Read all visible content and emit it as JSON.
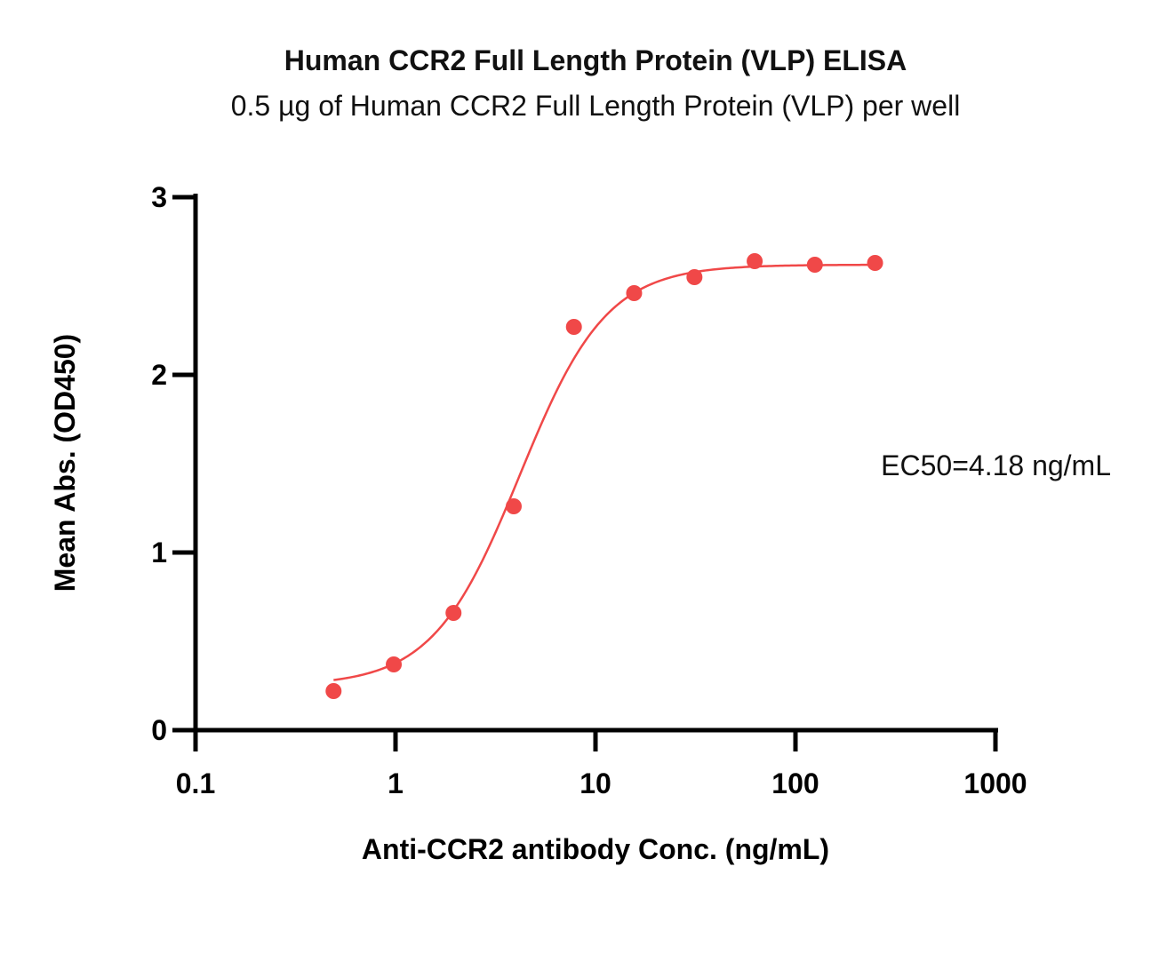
{
  "chart_data": {
    "type": "scatter",
    "title": "Human CCR2 Full Length Protein (VLP) ELISA",
    "subtitle": "0.5 µg of Human CCR2 Full Length Protein (VLP) per well",
    "xlabel": "Anti-CCR2 antibody Conc. (ng/mL)",
    "ylabel": "Mean Abs. (OD450)",
    "xscale": "log",
    "xlim": [
      0.1,
      1000
    ],
    "ylim": [
      0,
      3
    ],
    "xticks": [
      "0.1",
      "1",
      "10",
      "100",
      "1000"
    ],
    "yticks": [
      "0",
      "1",
      "2",
      "3"
    ],
    "annotation": "EC50=4.18 ng/mL",
    "color": "#f04848",
    "grid": false,
    "points": {
      "x": [
        0.49,
        0.98,
        1.95,
        3.9,
        7.8,
        15.6,
        31.25,
        62.5,
        125,
        250
      ],
      "y": [
        0.22,
        0.37,
        0.66,
        1.26,
        2.27,
        2.46,
        2.55,
        2.64,
        2.62,
        2.63
      ]
    },
    "fit": {
      "model": "4PL",
      "bottom": 0.25,
      "top": 2.62,
      "ec50": 4.18,
      "hill": 2.0,
      "x_range": [
        0.49,
        250
      ]
    }
  }
}
